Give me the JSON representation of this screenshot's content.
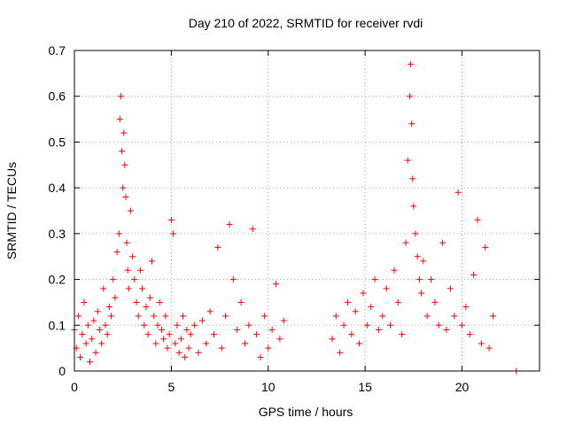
{
  "chart_data": {
    "type": "scatter",
    "title": "Day 210 of 2022, SRMTID for receiver rvdi",
    "xlabel": "GPS time / hours",
    "ylabel": "SRMTID / TECUs",
    "xlim": [
      0,
      24
    ],
    "ylim": [
      0,
      0.7
    ],
    "xticks": [
      0,
      5,
      10,
      15,
      20
    ],
    "yticks": [
      0,
      0.1,
      0.2,
      0.3,
      0.4,
      0.5,
      0.6,
      0.7
    ],
    "xtick_labels": [
      "0",
      "5",
      "10",
      "15",
      "20"
    ],
    "ytick_labels": [
      "0",
      "0.1",
      "0.2",
      "0.3",
      "0.4",
      "0.5",
      "0.6",
      "0.7"
    ],
    "grid": true,
    "marker": "+",
    "color": "#ff0000",
    "series": [
      {
        "name": "SRMTID",
        "x": [
          0.0,
          0.1,
          0.2,
          0.3,
          0.4,
          0.5,
          0.6,
          0.7,
          0.8,
          0.9,
          1.0,
          1.1,
          1.2,
          1.3,
          1.4,
          1.5,
          1.6,
          1.7,
          1.8,
          1.9,
          2.0,
          2.1,
          2.2,
          2.3,
          2.35,
          2.4,
          2.45,
          2.5,
          2.55,
          2.6,
          2.65,
          2.7,
          2.75,
          2.8,
          2.9,
          3.0,
          3.1,
          3.2,
          3.3,
          3.4,
          3.5,
          3.6,
          3.7,
          3.8,
          3.9,
          4.0,
          4.1,
          4.2,
          4.3,
          4.4,
          4.5,
          4.6,
          4.7,
          4.8,
          4.9,
          5.0,
          5.1,
          5.2,
          5.3,
          5.4,
          5.5,
          5.6,
          5.7,
          5.8,
          5.9,
          6.0,
          6.2,
          6.4,
          6.6,
          6.8,
          7.0,
          7.2,
          7.4,
          7.6,
          7.8,
          8.0,
          8.2,
          8.4,
          8.6,
          8.8,
          9.0,
          9.2,
          9.4,
          9.6,
          9.8,
          10.0,
          10.2,
          10.4,
          10.6,
          10.8,
          13.3,
          13.5,
          13.7,
          13.9,
          14.1,
          14.3,
          14.5,
          14.7,
          14.9,
          15.1,
          15.3,
          15.5,
          15.7,
          15.9,
          16.1,
          16.3,
          16.5,
          16.7,
          16.9,
          17.1,
          17.2,
          17.3,
          17.35,
          17.4,
          17.45,
          17.5,
          17.6,
          17.7,
          17.8,
          17.9,
          18.0,
          18.2,
          18.4,
          18.6,
          18.8,
          19.0,
          19.2,
          19.4,
          19.6,
          19.8,
          20.0,
          20.2,
          20.4,
          20.6,
          20.8,
          21.0,
          21.2,
          21.4,
          21.6,
          22.8
        ],
        "y": [
          0.09,
          0.05,
          0.12,
          0.03,
          0.08,
          0.15,
          0.06,
          0.1,
          0.02,
          0.07,
          0.11,
          0.04,
          0.13,
          0.09,
          0.06,
          0.18,
          0.1,
          0.08,
          0.14,
          0.12,
          0.2,
          0.16,
          0.26,
          0.3,
          0.55,
          0.6,
          0.48,
          0.4,
          0.52,
          0.45,
          0.38,
          0.28,
          0.22,
          0.18,
          0.35,
          0.25,
          0.2,
          0.15,
          0.12,
          0.22,
          0.18,
          0.1,
          0.14,
          0.08,
          0.16,
          0.24,
          0.12,
          0.06,
          0.1,
          0.15,
          0.09,
          0.07,
          0.12,
          0.05,
          0.08,
          0.33,
          0.3,
          0.06,
          0.1,
          0.04,
          0.07,
          0.12,
          0.03,
          0.09,
          0.05,
          0.08,
          0.1,
          0.04,
          0.11,
          0.06,
          0.13,
          0.08,
          0.27,
          0.05,
          0.12,
          0.32,
          0.2,
          0.09,
          0.15,
          0.06,
          0.1,
          0.31,
          0.08,
          0.03,
          0.12,
          0.05,
          0.09,
          0.19,
          0.07,
          0.11,
          0.07,
          0.12,
          0.04,
          0.1,
          0.15,
          0.08,
          0.13,
          0.06,
          0.17,
          0.1,
          0.14,
          0.2,
          0.09,
          0.12,
          0.18,
          0.1,
          0.22,
          0.15,
          0.08,
          0.28,
          0.46,
          0.6,
          0.67,
          0.54,
          0.42,
          0.36,
          0.3,
          0.25,
          0.2,
          0.17,
          0.24,
          0.12,
          0.2,
          0.15,
          0.1,
          0.28,
          0.09,
          0.18,
          0.12,
          0.39,
          0.1,
          0.14,
          0.08,
          0.21,
          0.33,
          0.06,
          0.27,
          0.05,
          0.12,
          0.0
        ]
      }
    ]
  }
}
